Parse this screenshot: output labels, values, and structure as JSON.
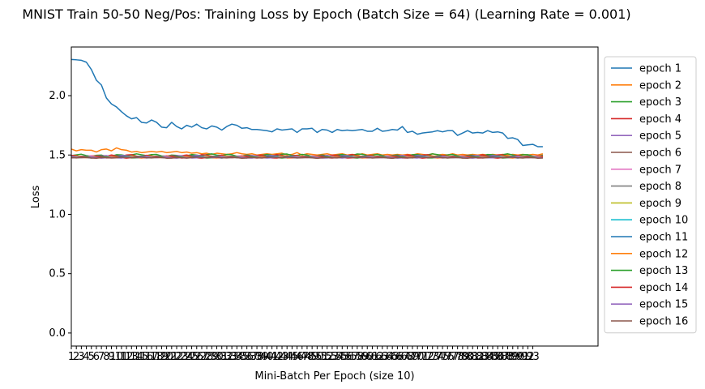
{
  "chart_data": {
    "type": "line",
    "title": "MNIST Train 50-50 Neg/Pos: Training Loss by Epoch (Batch Size = 64) (Learning Rate = 0.001)",
    "xlabel": "Mini-Batch Per Epoch (size 10)",
    "ylabel": "Loss",
    "ylim": [
      -0.11,
      2.41
    ],
    "xlim": [
      1,
      106
    ],
    "yticks": [
      0.0,
      0.5,
      1.0,
      1.5,
      2.0
    ],
    "ytick_labels": [
      "0.0",
      "0.5",
      "1.0",
      "1.5",
      "2.0"
    ],
    "x_tick_count": 93,
    "grid": false,
    "legend_position": "outside right",
    "colors": [
      "#1f77b4",
      "#ff7f0e",
      "#2ca02c",
      "#d62728",
      "#9467bd",
      "#8c564b",
      "#e377c2",
      "#7f7f7f",
      "#bcbd22",
      "#17becf"
    ],
    "series": [
      {
        "name": "epoch 1",
        "values": [
          2.305,
          2.302,
          2.298,
          2.282,
          2.22,
          2.13,
          2.09,
          1.98,
          1.93,
          1.905,
          1.865,
          1.83,
          1.805,
          1.815,
          1.775,
          1.77,
          1.795,
          1.775,
          1.735,
          1.73,
          1.775,
          1.74,
          1.72,
          1.75,
          1.735,
          1.76,
          1.73,
          1.72,
          1.745,
          1.735,
          1.71,
          1.74,
          1.76,
          1.75,
          1.725,
          1.73,
          1.715,
          1.715,
          1.71,
          1.705,
          1.695,
          1.72,
          1.71,
          1.715,
          1.72,
          1.69,
          1.72,
          1.72,
          1.725,
          1.69,
          1.715,
          1.71,
          1.69,
          1.715,
          1.705,
          1.71,
          1.705,
          1.71,
          1.715,
          1.7,
          1.7,
          1.725,
          1.7,
          1.705,
          1.715,
          1.71,
          1.74,
          1.69,
          1.7,
          1.675,
          1.685,
          1.69,
          1.695,
          1.705,
          1.695,
          1.705,
          1.705,
          1.665,
          1.685,
          1.705,
          1.685,
          1.69,
          1.685,
          1.705,
          1.69,
          1.695,
          1.685,
          1.64,
          1.645,
          1.63,
          1.58,
          1.585,
          1.59,
          1.57,
          1.57
        ]
      },
      {
        "name": "epoch 2",
        "values": [
          1.55,
          1.535,
          1.545,
          1.54,
          1.54,
          1.525,
          1.545,
          1.55,
          1.535,
          1.56,
          1.545,
          1.54,
          1.525,
          1.53,
          1.52,
          1.525,
          1.53,
          1.525,
          1.53,
          1.52,
          1.525,
          1.53,
          1.52,
          1.525,
          1.515,
          1.52,
          1.51,
          1.515,
          1.505,
          1.515,
          1.51,
          1.505,
          1.51,
          1.52,
          1.51,
          1.505,
          1.51,
          1.5,
          1.505,
          1.51,
          1.505,
          1.51,
          1.515,
          1.5,
          1.505,
          1.52,
          1.5,
          1.51,
          1.505,
          1.5,
          1.505,
          1.51,
          1.5,
          1.505,
          1.51,
          1.5,
          1.505,
          1.5,
          1.51,
          1.5,
          1.505,
          1.51,
          1.5,
          1.505,
          1.5,
          1.505,
          1.5,
          1.505,
          1.5,
          1.51,
          1.505,
          1.5,
          1.51,
          1.5,
          1.505,
          1.5,
          1.51,
          1.5,
          1.505,
          1.5,
          1.505,
          1.5,
          1.505,
          1.5,
          1.505,
          1.5,
          1.505,
          1.5,
          1.505,
          1.5,
          1.505,
          1.5,
          1.505,
          1.5,
          1.51
        ]
      },
      {
        "name": "epoch 3",
        "base": 1.498,
        "amplitude": 0.012
      },
      {
        "name": "epoch 4",
        "base": 1.492,
        "amplitude": 0.012
      },
      {
        "name": "epoch 5",
        "base": 1.488,
        "amplitude": 0.01
      },
      {
        "name": "epoch 6",
        "base": 1.486,
        "amplitude": 0.01
      },
      {
        "name": "epoch 7",
        "base": 1.485,
        "amplitude": 0.008
      },
      {
        "name": "epoch 8",
        "base": 1.484,
        "amplitude": 0.008
      },
      {
        "name": "epoch 9",
        "base": 1.483,
        "amplitude": 0.008
      },
      {
        "name": "epoch 10",
        "base": 1.482,
        "amplitude": 0.007
      },
      {
        "name": "epoch 11",
        "base": 1.481,
        "amplitude": 0.007
      },
      {
        "name": "epoch 12",
        "base": 1.481,
        "amplitude": 0.007
      },
      {
        "name": "epoch 13",
        "base": 1.48,
        "amplitude": 0.006
      },
      {
        "name": "epoch 14",
        "base": 1.479,
        "amplitude": 0.006
      },
      {
        "name": "epoch 15",
        "base": 1.479,
        "amplitude": 0.006
      },
      {
        "name": "epoch 16",
        "base": 1.478,
        "amplitude": 0.006
      }
    ]
  }
}
